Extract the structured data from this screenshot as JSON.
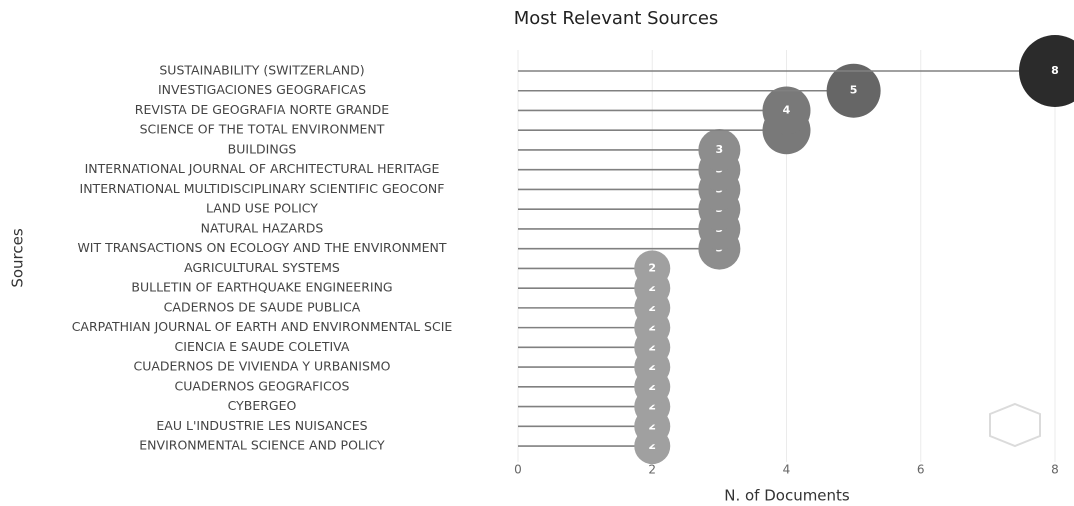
{
  "chart_data": {
    "type": "lollipop",
    "title": "Most Relevant Sources",
    "x_label": "N. of Documents",
    "y_label": "Sources",
    "categories": [
      "SUSTAINABILITY (SWITZERLAND)",
      "INVESTIGACIONES GEOGRAFICAS",
      "REVISTA DE GEOGRAFIA NORTE GRANDE",
      "SCIENCE OF THE TOTAL ENVIRONMENT",
      "BUILDINGS",
      "INTERNATIONAL JOURNAL OF ARCHITECTURAL HERITAGE",
      "INTERNATIONAL MULTIDISCIPLINARY SCIENTIFIC GEOCONF",
      "LAND USE POLICY",
      "NATURAL HAZARDS",
      "WIT TRANSACTIONS ON ECOLOGY AND THE ENVIRONMENT",
      "AGRICULTURAL SYSTEMS",
      "BULLETIN OF EARTHQUAKE ENGINEERING",
      "CADERNOS DE SAUDE PUBLICA",
      "CARPATHIAN JOURNAL OF EARTH AND ENVIRONMENTAL SCIE",
      "CIENCIA E SAUDE COLETIVA",
      "CUADERNOS DE VIVIENDA Y URBANISMO",
      "CUADERNOS GEOGRAFICOS",
      "CYBERGEO",
      "EAU L'INDUSTRIE LES NUISANCES",
      "ENVIRONMENTAL SCIENCE AND POLICY"
    ],
    "values": [
      8,
      5,
      4,
      4,
      3,
      3,
      3,
      3,
      3,
      3,
      2,
      2,
      2,
      2,
      2,
      2,
      2,
      2,
      2,
      2
    ],
    "xlim": [
      0,
      8
    ],
    "xticks": [
      0,
      2,
      4,
      6,
      8
    ],
    "grid": true,
    "line_color": "#808080",
    "color_low": "#a0a0a0",
    "color_high": "#2b2b2b"
  }
}
